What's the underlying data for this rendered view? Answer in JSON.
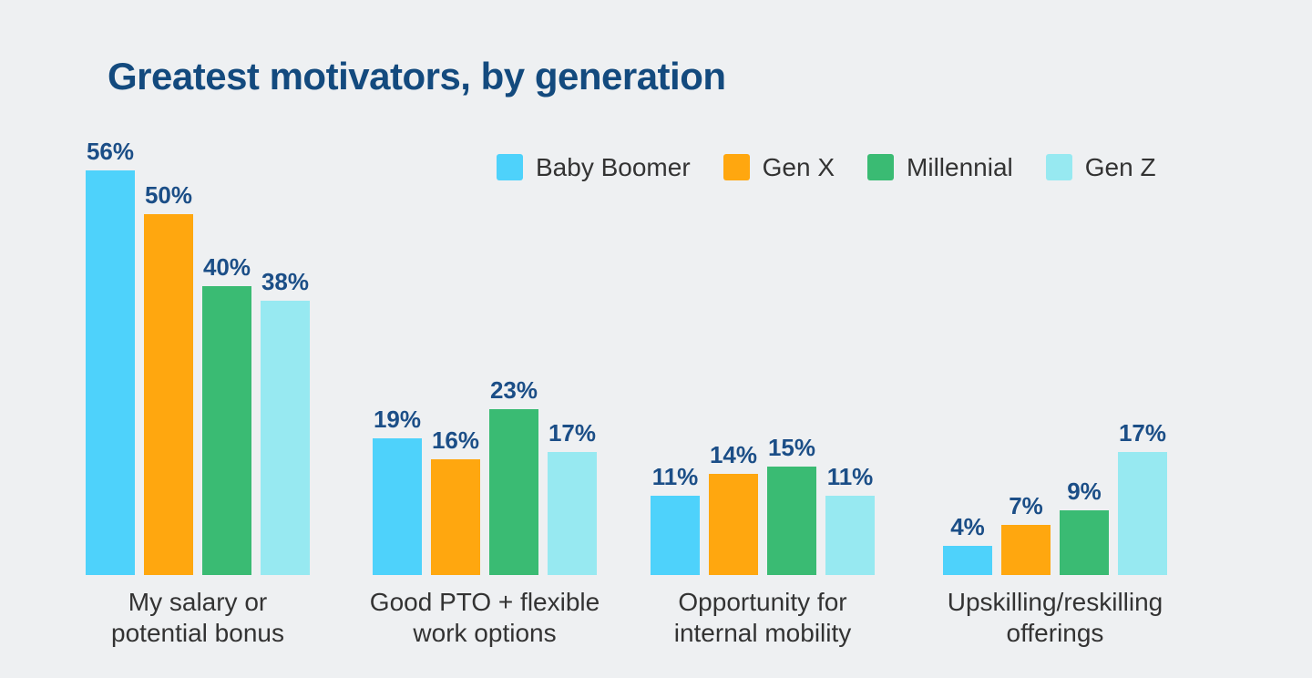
{
  "title": "Greatest motivators, by generation",
  "colors": {
    "background": "#EEF0F2",
    "title": "#134A7E",
    "value_labels": "#1B4E87",
    "body_text": "#333333",
    "baby_boomer": "#4ED2FB",
    "gen_x": "#FFA70F",
    "millennial": "#3ABB73",
    "gen_z": "#97E9F1"
  },
  "chart_data": {
    "type": "bar",
    "title": "Greatest motivators, by generation",
    "xlabel": "",
    "ylabel": "",
    "ylim": [
      0,
      60
    ],
    "grid": false,
    "axes_visible": false,
    "legend_position": "top",
    "value_suffix": "%",
    "categories": [
      "My salary or\npotential bonus",
      "Good PTO + flexible\nwork options",
      "Opportunity for\ninternal mobility",
      "Upskilling/reskilling\nofferings"
    ],
    "series": [
      {
        "name": "Baby Boomer",
        "color": "#4ED2FB",
        "values": [
          56,
          19,
          11,
          4
        ]
      },
      {
        "name": "Gen X",
        "color": "#FFA70F",
        "values": [
          50,
          16,
          14,
          7
        ]
      },
      {
        "name": "Millennial",
        "color": "#3ABB73",
        "values": [
          40,
          23,
          15,
          9
        ]
      },
      {
        "name": "Gen Z",
        "color": "#97E9F1",
        "values": [
          38,
          17,
          11,
          17
        ]
      }
    ]
  }
}
